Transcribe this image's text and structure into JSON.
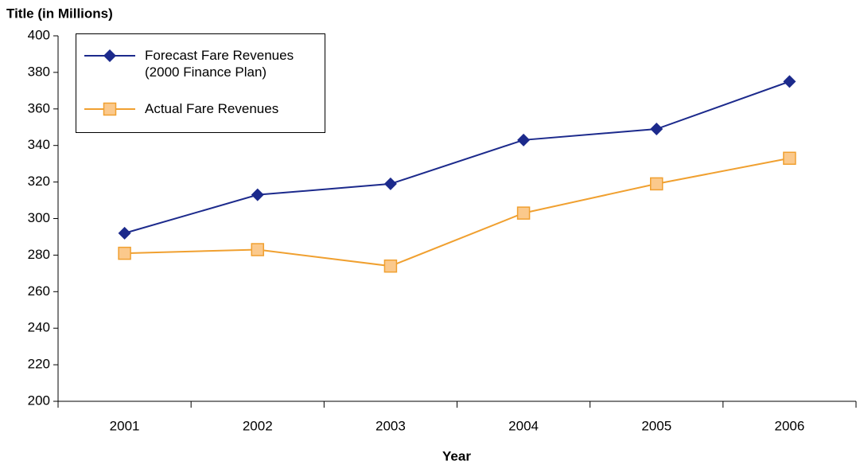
{
  "chart_data": {
    "type": "line",
    "title": "Title (in Millions)",
    "x_label": "Year",
    "categories": [
      "2001",
      "2002",
      "2003",
      "2004",
      "2005",
      "2006"
    ],
    "series": [
      {
        "name": "Forecast Fare Revenues (2000 Finance Plan)",
        "color": "#1c2a8c",
        "marker": "diamond",
        "values": [
          292,
          313,
          319,
          343,
          349,
          375
        ]
      },
      {
        "name": "Actual Fare Revenues",
        "color": "#f0a030",
        "marker": "square",
        "marker_fill": "#fbc98c",
        "values": [
          281,
          283,
          274,
          303,
          319,
          333
        ]
      }
    ],
    "ylim": [
      200,
      400
    ],
    "yticks": [
      200,
      220,
      240,
      260,
      280,
      300,
      320,
      340,
      360,
      380,
      400
    ],
    "legend": "top-left"
  }
}
